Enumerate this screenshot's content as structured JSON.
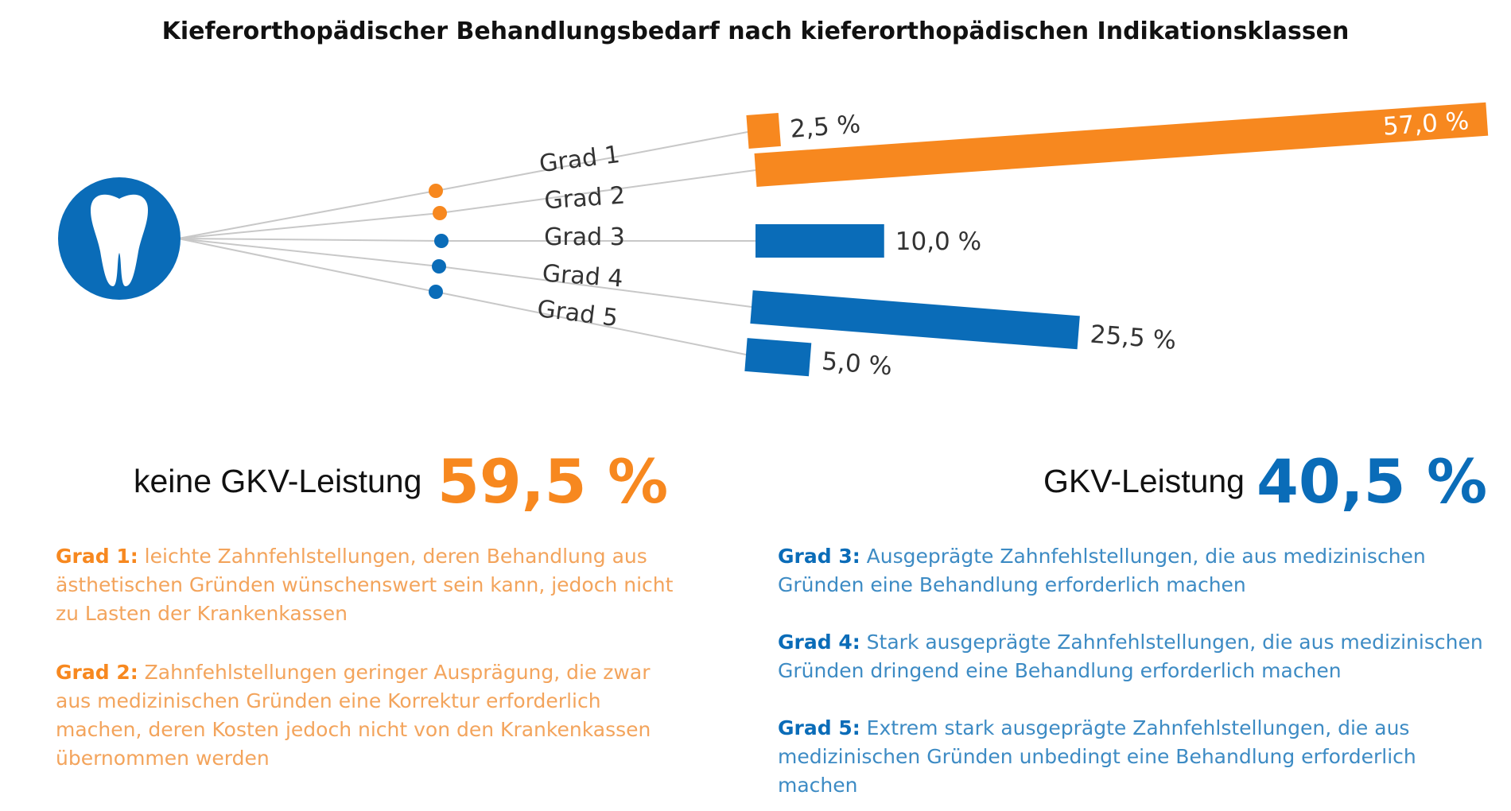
{
  "title": "Kieferorthopädischer Behandlungsbedarf nach kieferorthopädischen Indikationsklassen",
  "colors": {
    "orange": "#f7881f",
    "blue": "#0a6cb8",
    "line": "#c8c8c8",
    "icon": "tooth-icon"
  },
  "chart_data": {
    "type": "bar",
    "categories": [
      "Grad 1",
      "Grad 2",
      "Grad 3",
      "Grad 4",
      "Grad 5"
    ],
    "values": [
      2.5,
      57.0,
      10.0,
      25.5,
      5.0
    ],
    "value_labels": [
      "2,5 %",
      "57,0 %",
      "10,0 %",
      "25,5 %",
      "5,0 %"
    ],
    "series_colors": [
      "#f7881f",
      "#f7881f",
      "#0a6cb8",
      "#0a6cb8",
      "#0a6cb8"
    ],
    "title": "Kieferorthopädischer Behandlungsbedarf nach kieferorthopädischen Indikationsklassen"
  },
  "summary": {
    "left": {
      "label": "keine GKV-Leistung",
      "value": "59,5 %"
    },
    "right": {
      "label": "GKV-Leistung",
      "value": "40,5 %"
    }
  },
  "descriptions": {
    "grad1": {
      "head": "Grad 1:",
      "text": "leichte Zahnfehlstellungen, deren Behandlung aus ästhetischen Gründen wünschenswert sein kann, jedoch nicht zu Lasten der Krankenkassen"
    },
    "grad2": {
      "head": "Grad 2:",
      "text": "Zahnfehlstellungen geringer Ausprägung, die zwar aus medizinischen Gründen eine Korrektur erforderlich machen, deren Kosten jedoch nicht von den Krankenkassen übernommen werden"
    },
    "grad3": {
      "head": "Grad 3:",
      "text": "Ausgeprägte Zahnfehlstellungen, die aus medizinischen Gründen eine Behandlung erforderlich machen"
    },
    "grad4": {
      "head": "Grad 4:",
      "text": "Stark ausgeprägte Zahnfehlstellungen, die aus medizinischen Gründen dringend eine Behandlung erforderlich machen"
    },
    "grad5": {
      "head": "Grad 5:",
      "text": "Extrem stark ausgeprägte Zahnfehlstellungen, die aus medizinischen Gründen unbedingt eine Behandlung erforderlich machen"
    }
  }
}
